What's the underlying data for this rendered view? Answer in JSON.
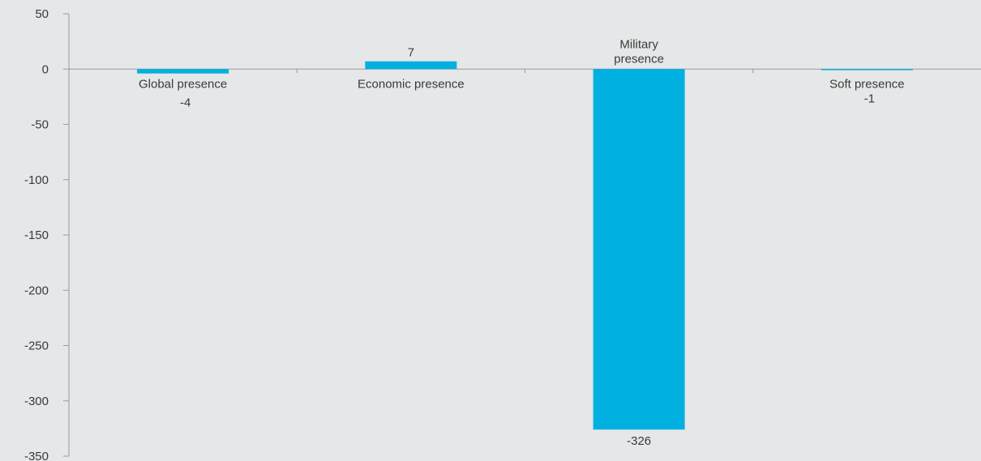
{
  "chart_data": {
    "type": "bar",
    "categories": [
      "Global presence",
      "Economic presence",
      "Military\npresence",
      "Soft presence"
    ],
    "values": [
      -4,
      7,
      -326,
      -1
    ],
    "data_labels": [
      "-4",
      "7",
      "-326",
      "-1"
    ],
    "ylim": [
      -350,
      50
    ],
    "yticks": [
      50,
      0,
      -50,
      -100,
      -150,
      -200,
      -250,
      -300,
      -350
    ],
    "grid": false,
    "bar_color": "#00b0e0"
  }
}
